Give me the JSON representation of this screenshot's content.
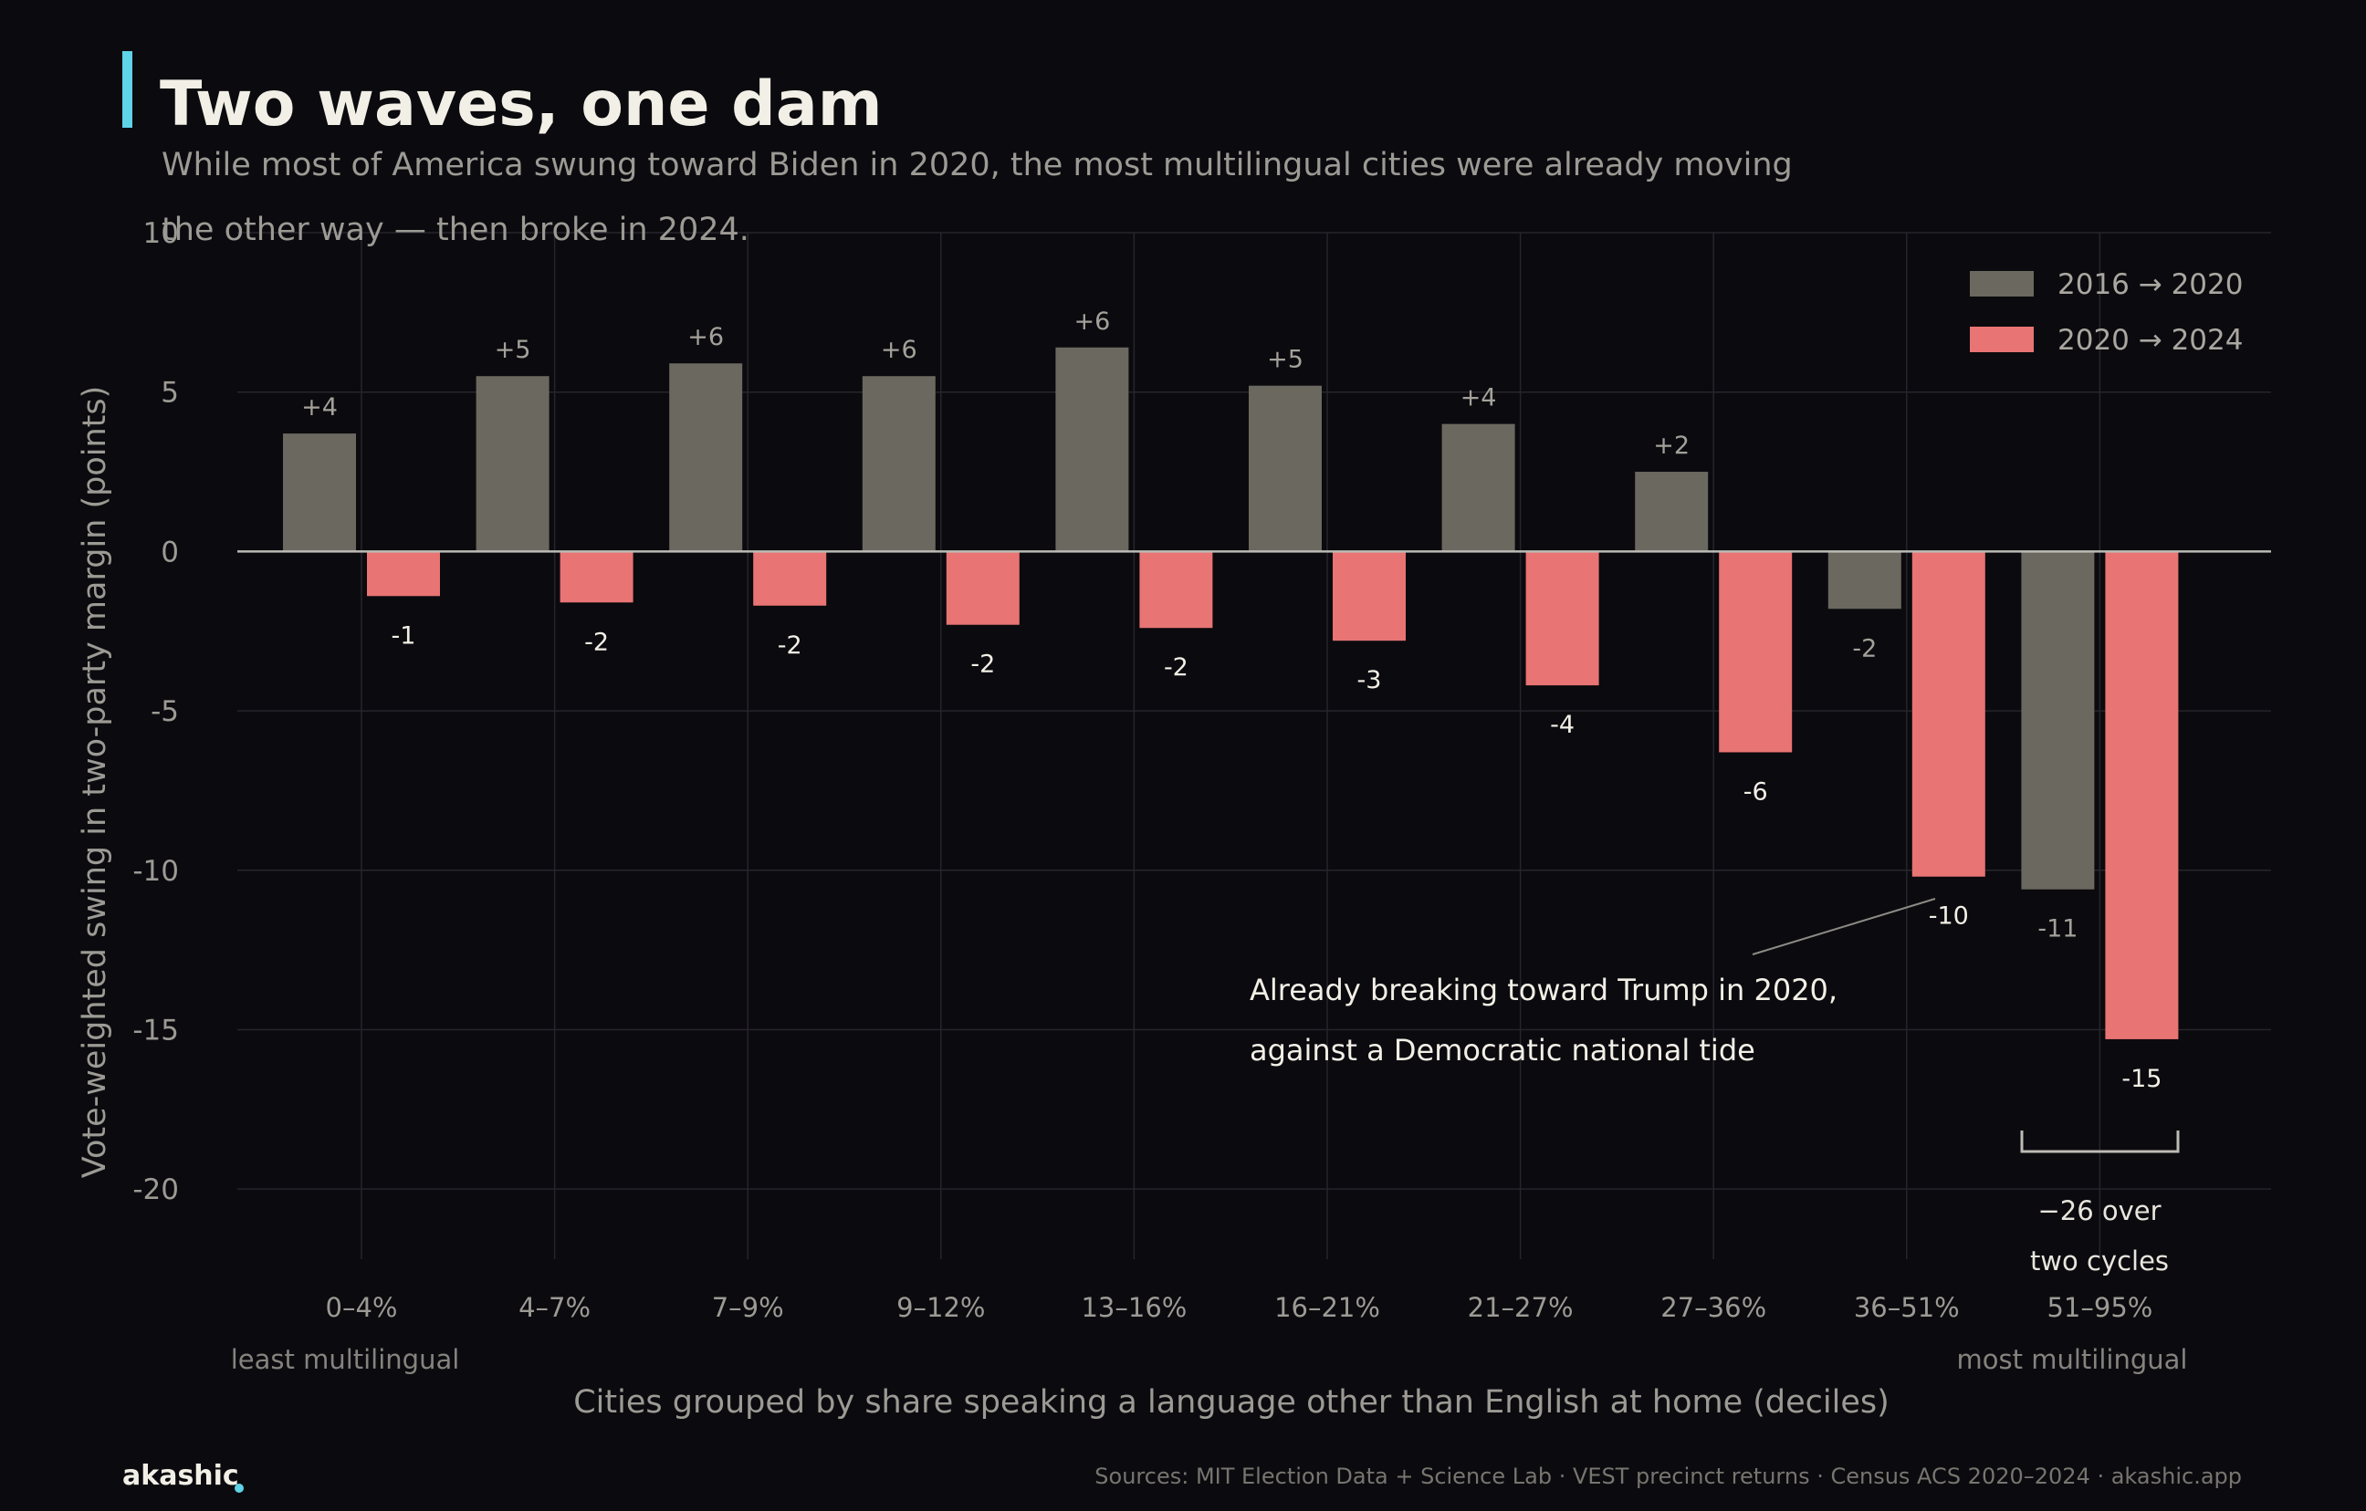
{
  "header": {
    "title": "Two waves, one dam",
    "subtitle_line1": "While most of America swung toward Biden in 2020, the most multilingual cities were already moving",
    "subtitle_line2": "the other way — then broke in 2024.",
    "accent_color": "#5fd3e8"
  },
  "chart_data": {
    "type": "bar",
    "categories": [
      "0–4%",
      "4–7%",
      "7–9%",
      "9–12%",
      "13–16%",
      "16–21%",
      "21–27%",
      "27–36%",
      "36–51%",
      "51–95%"
    ],
    "series": [
      {
        "name": "2016 → 2020",
        "color": "#6b685f",
        "values": [
          3.7,
          5.5,
          5.9,
          5.5,
          6.4,
          5.2,
          4.0,
          2.5,
          -1.8,
          -10.6
        ],
        "labels": [
          "+4",
          "+5",
          "+6",
          "+6",
          "+6",
          "+5",
          "+4",
          "+2",
          "-2",
          "-11"
        ]
      },
      {
        "name": "2020 → 2024",
        "color": "#e87474",
        "values": [
          -1.4,
          -1.6,
          -1.7,
          -2.3,
          -2.4,
          -2.8,
          -4.2,
          -6.3,
          -10.2,
          -15.3
        ],
        "labels": [
          "-1",
          "-2",
          "-2",
          "-2",
          "-2",
          "-3",
          "-4",
          "-6",
          "-10",
          "-15"
        ]
      }
    ],
    "ylim": [
      -22.2,
      10
    ],
    "yticks": [
      10,
      5,
      0,
      -5,
      -10,
      -15,
      -20
    ],
    "ytick_labels": [
      "10",
      "5",
      "0",
      "-5",
      "-10",
      "-15",
      "-20"
    ],
    "xlabel": "Cities grouped by share speaking a language other than English at home (deciles)",
    "ylabel": "Vote-weighted swing in two-party margin (points)",
    "x_end_labels": {
      "left": "least multilingual",
      "right": "most multilingual"
    },
    "annotation": {
      "line1": "Already breaking toward Trump in 2020,",
      "line2": "against a Democratic national tide"
    },
    "bracket": {
      "line1": "−26 over",
      "line2": "two cycles"
    },
    "legend_position": "top-right",
    "grid": true
  },
  "footer": {
    "brand": "akashic",
    "brand_dot_color": "#5fd3e8",
    "sources": "Sources: MIT Election Data + Science Lab · VEST precinct returns · Census ACS 2020–2024  ·  akashic.app"
  }
}
